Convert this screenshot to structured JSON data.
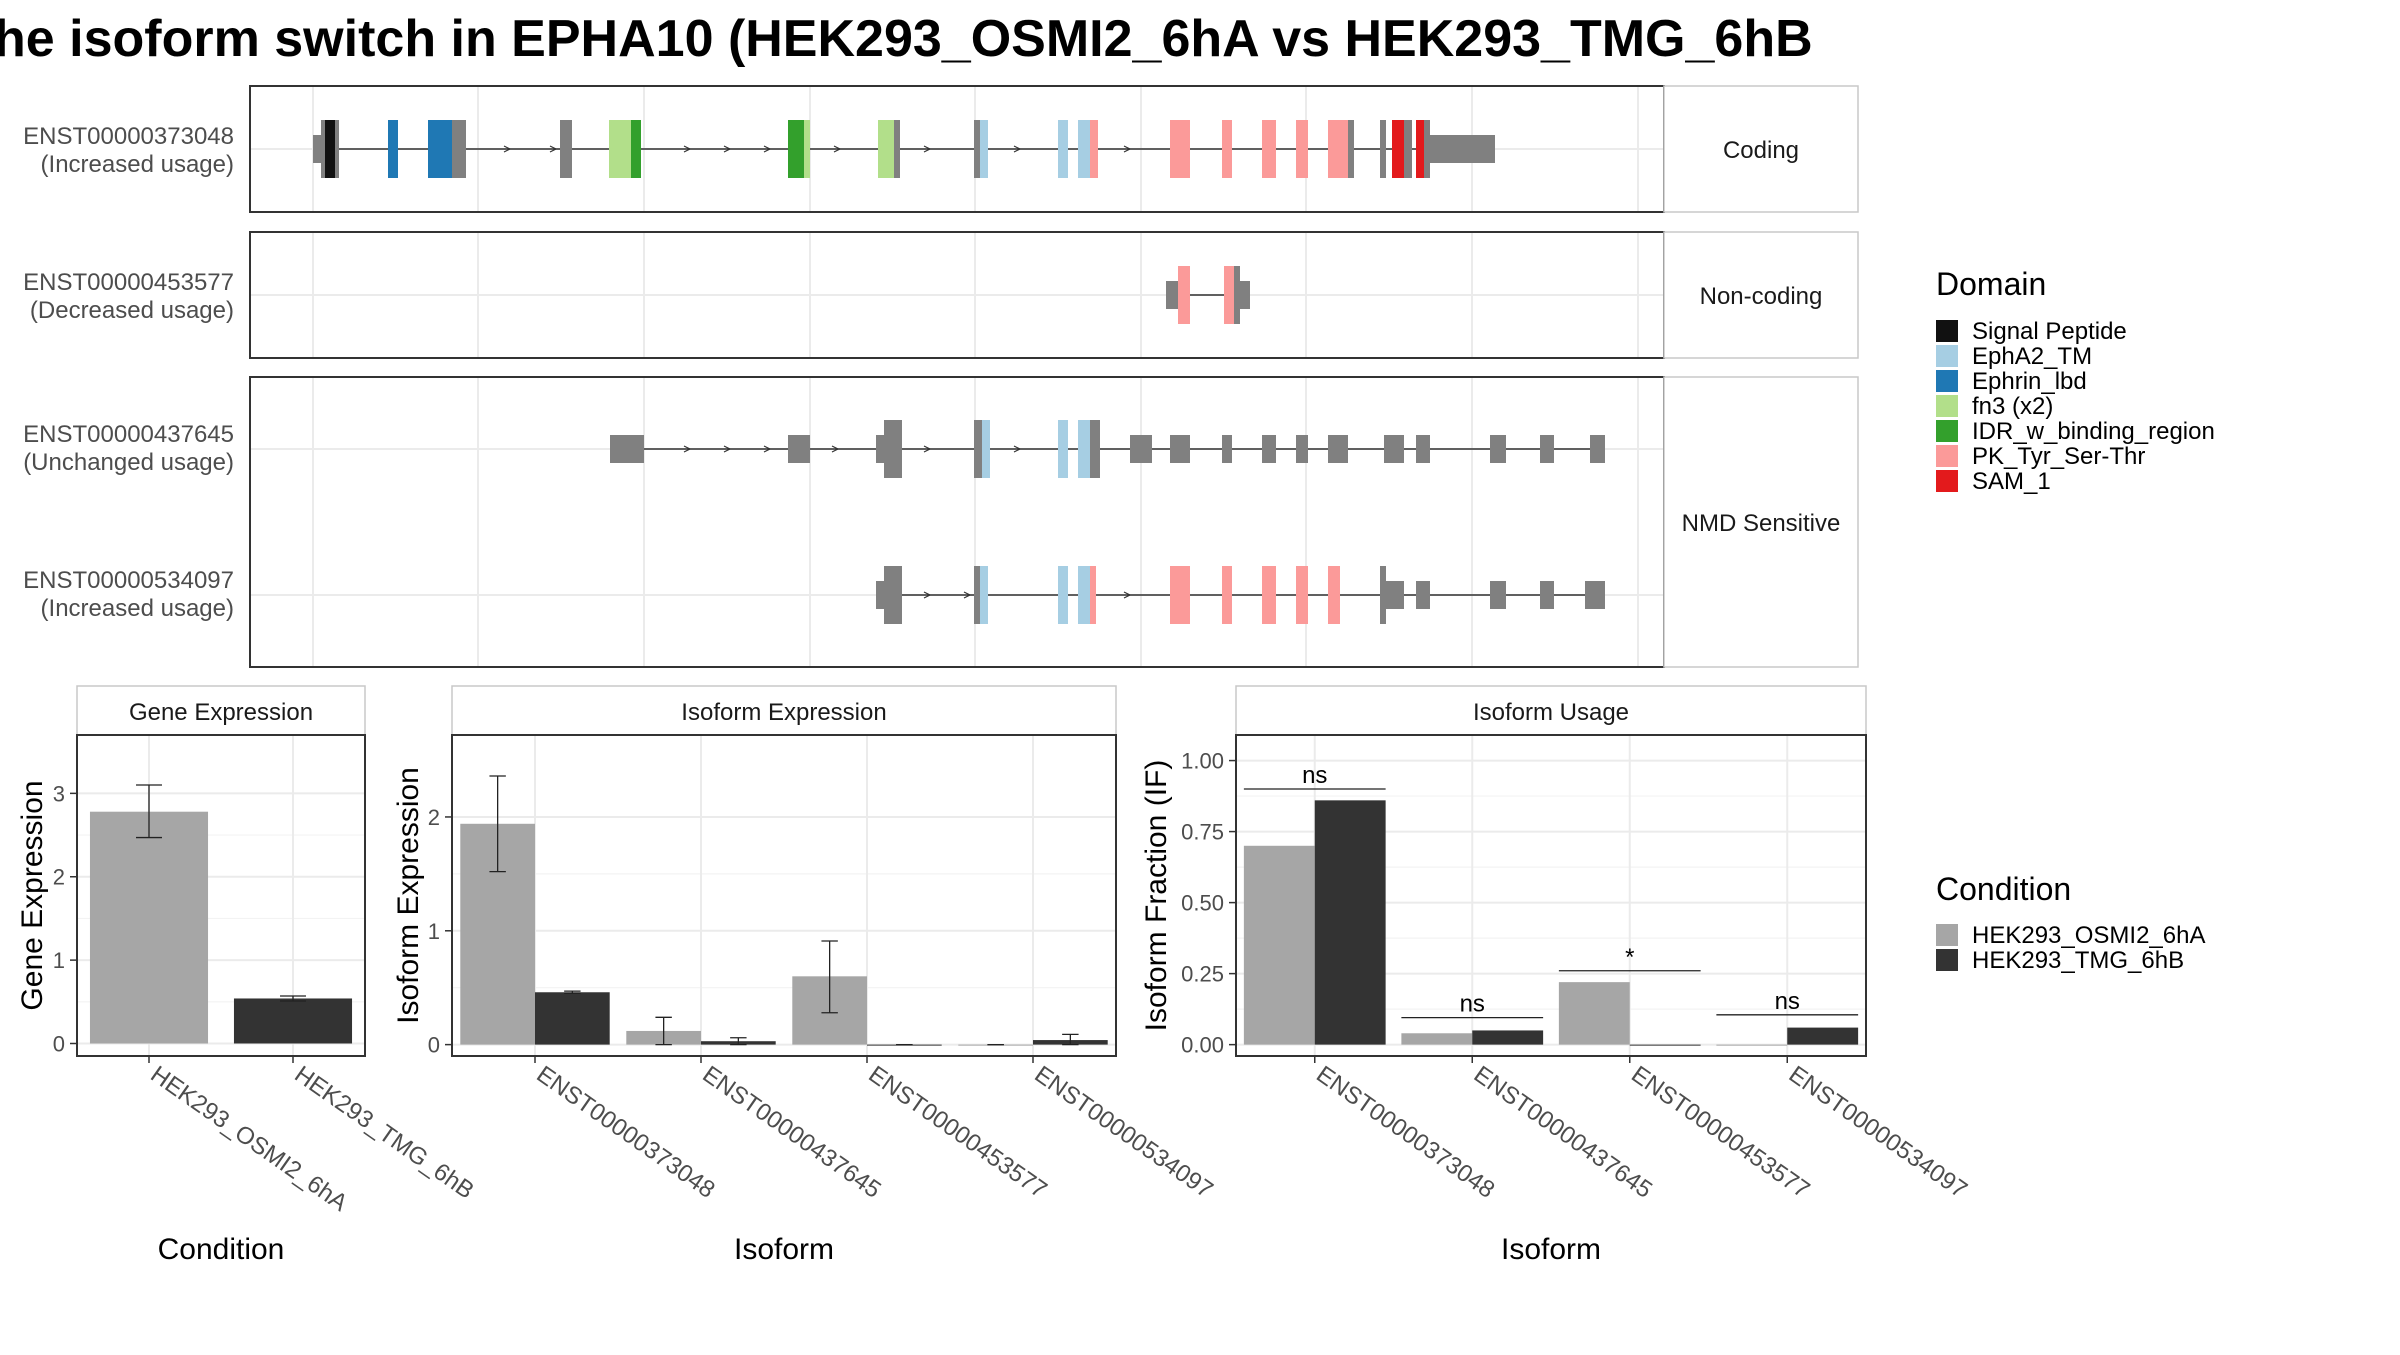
{
  "title": "he isoform switch in EPHA10 (HEK293_OSMI2_6hA vs HEK293_TMG_6hB",
  "colors": {
    "background": "#ffffff",
    "exon_default": "#808080",
    "grid": "#ebebeb",
    "condition_a": "#a6a6a6",
    "condition_b": "#333333"
  },
  "structure_panels": [
    {
      "facet": "Coding",
      "isoforms": [
        {
          "id": "ENST00000373048",
          "usage": "(Increased usage)"
        }
      ]
    },
    {
      "facet": "Non-coding",
      "isoforms": [
        {
          "id": "ENST00000453577",
          "usage": "(Decreased usage)"
        }
      ]
    },
    {
      "facet": "NMD Sensitive",
      "isoforms": [
        {
          "id": "ENST00000437645",
          "usage": "(Unchanged usage)"
        },
        {
          "id": "ENST00000534097",
          "usage": "(Increased usage)"
        }
      ]
    }
  ],
  "domain_legend": {
    "title": "Domain",
    "items": [
      {
        "name": "Signal Peptide",
        "color": "#111111"
      },
      {
        "name": "EphA2_TM",
        "color": "#a6cee3"
      },
      {
        "name": "Ephrin_lbd",
        "color": "#1f78b4"
      },
      {
        "name": "fn3 (x2)",
        "color": "#b2df8a"
      },
      {
        "name": "IDR_w_binding_region",
        "color": "#33a02c"
      },
      {
        "name": "PK_Tyr_Ser-Thr",
        "color": "#fb9a99"
      },
      {
        "name": "SAM_1",
        "color": "#e31a1c"
      }
    ]
  },
  "condition_legend": {
    "title": "Condition",
    "items": [
      {
        "name": "HEK293_OSMI2_6hA",
        "color": "#a6a6a6"
      },
      {
        "name": "HEK293_TMG_6hB",
        "color": "#333333"
      }
    ]
  },
  "chart_data": [
    {
      "type": "bar",
      "title": "Gene Expression",
      "xlabel": "Condition",
      "ylabel": "Gene Expression",
      "categories": [
        "HEK293_OSMI2_6hA",
        "HEK293_TMG_6hB"
      ],
      "yticks": [
        0,
        1,
        2,
        3
      ],
      "ylim": [
        -0.15,
        3.7
      ],
      "series": [
        {
          "name": "HEK293_OSMI2_6hA",
          "color": "#a6a6a6",
          "values": [
            2.78,
            null
          ],
          "err_low": [
            2.47,
            null
          ],
          "err_high": [
            3.1,
            null
          ]
        },
        {
          "name": "HEK293_TMG_6hB",
          "color": "#333333",
          "values": [
            null,
            0.54
          ],
          "err_low": [
            null,
            0.51
          ],
          "err_high": [
            null,
            0.57
          ]
        }
      ]
    },
    {
      "type": "bar",
      "title": "Isoform Expression",
      "xlabel": "Isoform",
      "ylabel": "Isoform Expression",
      "categories": [
        "ENST00000373048",
        "ENST00000437645",
        "ENST00000453577",
        "ENST00000534097"
      ],
      "yticks": [
        0,
        1,
        2
      ],
      "ylim": [
        -0.1,
        2.72
      ],
      "series": [
        {
          "name": "HEK293_OSMI2_6hA",
          "color": "#a6a6a6",
          "values": [
            1.94,
            0.12,
            0.6,
            0.0
          ],
          "err_low": [
            1.52,
            0.0,
            0.28,
            0.0
          ],
          "err_high": [
            2.36,
            0.24,
            0.91,
            0.0
          ]
        },
        {
          "name": "HEK293_TMG_6hB",
          "color": "#333333",
          "values": [
            0.46,
            0.03,
            0.0,
            0.04
          ],
          "err_low": [
            0.45,
            0.0,
            0.0,
            0.0
          ],
          "err_high": [
            0.47,
            0.06,
            0.0,
            0.09
          ]
        }
      ]
    },
    {
      "type": "bar",
      "title": "Isoform Usage",
      "xlabel": "Isoform",
      "ylabel": "Isoform Fraction (IF)",
      "categories": [
        "ENST00000373048",
        "ENST00000437645",
        "ENST00000453577",
        "ENST00000534097"
      ],
      "yticks": [
        0.0,
        0.25,
        0.5,
        0.75,
        1.0
      ],
      "ytick_labels": [
        "0.00",
        "0.25",
        "0.50",
        "0.75",
        "1.00"
      ],
      "ylim": [
        -0.04,
        1.09
      ],
      "series": [
        {
          "name": "HEK293_OSMI2_6hA",
          "color": "#a6a6a6",
          "values": [
            0.7,
            0.04,
            0.22,
            0.0
          ]
        },
        {
          "name": "HEK293_TMG_6hB",
          "color": "#333333",
          "values": [
            0.86,
            0.05,
            0.0,
            0.06
          ]
        }
      ],
      "annotations": [
        {
          "category": "ENST00000373048",
          "label": "ns",
          "y": 0.9
        },
        {
          "category": "ENST00000437645",
          "label": "ns",
          "y": 0.095
        },
        {
          "category": "ENST00000453577",
          "label": "*",
          "y": 0.26
        },
        {
          "category": "ENST00000534097",
          "label": "ns",
          "y": 0.105
        }
      ]
    }
  ]
}
